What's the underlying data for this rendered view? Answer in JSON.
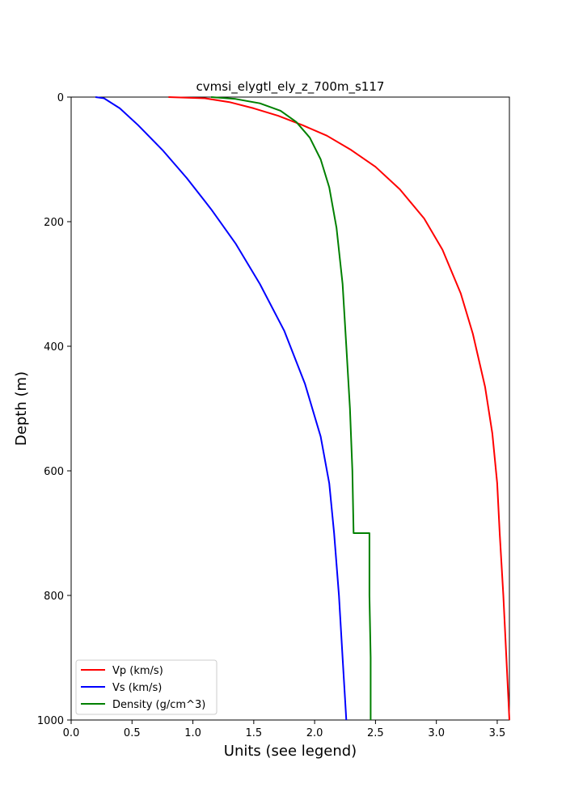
{
  "chart_data": {
    "type": "line",
    "title": "cvmsi_elygtl_ely_z_700m_s117",
    "xlabel": "Units (see legend)",
    "ylabel": "Depth (m)",
    "xlim": [
      0,
      3.6
    ],
    "ylim": [
      1000,
      0
    ],
    "y_inverted": true,
    "xticks": [
      "0.0",
      "0.5",
      "1.0",
      "1.5",
      "2.0",
      "2.5",
      "3.0",
      "3.5"
    ],
    "yticks": [
      "0",
      "200",
      "400",
      "600",
      "800",
      "1000"
    ],
    "grid": false,
    "legend_position": "lower-left",
    "series": [
      {
        "name": "Vp (km/s)",
        "color": "#ff0000",
        "points": [
          [
            0.8,
            0
          ],
          [
            1.1,
            2
          ],
          [
            1.3,
            8
          ],
          [
            1.5,
            18
          ],
          [
            1.7,
            30
          ],
          [
            1.9,
            45
          ],
          [
            2.1,
            62
          ],
          [
            2.3,
            85
          ],
          [
            2.5,
            112
          ],
          [
            2.7,
            148
          ],
          [
            2.9,
            195
          ],
          [
            3.05,
            245
          ],
          [
            3.2,
            315
          ],
          [
            3.3,
            380
          ],
          [
            3.4,
            465
          ],
          [
            3.46,
            540
          ],
          [
            3.5,
            620
          ],
          [
            3.52,
            700
          ],
          [
            3.55,
            800
          ],
          [
            3.58,
            920
          ],
          [
            3.6,
            1000
          ]
        ]
      },
      {
        "name": "Vs (km/s)",
        "color": "#0000ff",
        "points": [
          [
            0.2,
            0
          ],
          [
            0.27,
            2
          ],
          [
            0.4,
            18
          ],
          [
            0.55,
            45
          ],
          [
            0.75,
            85
          ],
          [
            0.95,
            130
          ],
          [
            1.15,
            180
          ],
          [
            1.35,
            235
          ],
          [
            1.55,
            300
          ],
          [
            1.75,
            375
          ],
          [
            1.92,
            460
          ],
          [
            2.05,
            545
          ],
          [
            2.12,
            620
          ],
          [
            2.16,
            700
          ],
          [
            2.2,
            800
          ],
          [
            2.23,
            900
          ],
          [
            2.26,
            1000
          ]
        ]
      },
      {
        "name": "Density (g/cm^3)",
        "color": "#008000",
        "points": [
          [
            1.15,
            0
          ],
          [
            1.35,
            3
          ],
          [
            1.55,
            10
          ],
          [
            1.72,
            22
          ],
          [
            1.85,
            40
          ],
          [
            1.96,
            65
          ],
          [
            2.05,
            100
          ],
          [
            2.12,
            145
          ],
          [
            2.18,
            210
          ],
          [
            2.23,
            300
          ],
          [
            2.26,
            400
          ],
          [
            2.29,
            500
          ],
          [
            2.31,
            600
          ],
          [
            2.32,
            700
          ],
          [
            2.45,
            700
          ],
          [
            2.45,
            800
          ],
          [
            2.46,
            900
          ],
          [
            2.46,
            1000
          ]
        ]
      }
    ]
  }
}
